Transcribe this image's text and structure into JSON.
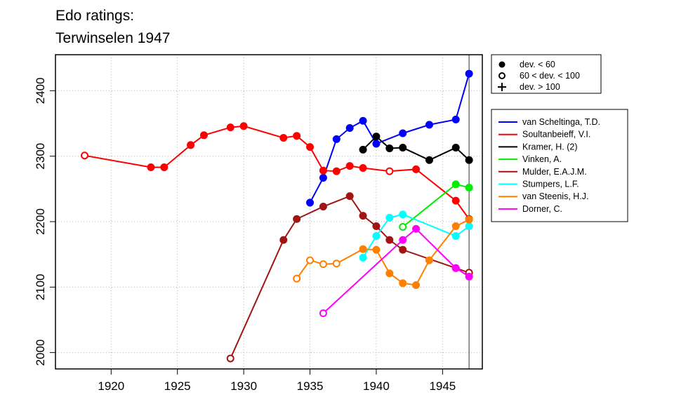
{
  "chart_data": {
    "type": "line",
    "title": "Edo ratings:",
    "subtitle": "Terwinselen 1947",
    "xlabel": "",
    "ylabel": "",
    "xlim": [
      1915.8,
      1948.0
    ],
    "ylim": [
      1975,
      2455
    ],
    "x_ticks": [
      1920,
      1925,
      1930,
      1935,
      1940,
      1945
    ],
    "y_ticks": [
      2000,
      2100,
      2200,
      2300,
      2400
    ],
    "grid": true,
    "vline_x": 1947,
    "deviation_legend": [
      {
        "symbol": "filled",
        "label": "dev. < 60"
      },
      {
        "symbol": "open",
        "label": "60 < dev. < 100"
      },
      {
        "symbol": "plus",
        "label": "dev. > 100"
      }
    ],
    "series": [
      {
        "name": "van Scheltinga, T.D.",
        "color": "#0000ff",
        "points": [
          {
            "x": 1935,
            "y": 2229,
            "m": "f"
          },
          {
            "x": 1936,
            "y": 2267,
            "m": "f"
          },
          {
            "x": 1937,
            "y": 2326,
            "m": "f"
          },
          {
            "x": 1938,
            "y": 2343,
            "m": "f"
          },
          {
            "x": 1939,
            "y": 2354,
            "m": "f"
          },
          {
            "x": 1940,
            "y": 2319,
            "m": "f"
          },
          {
            "x": 1942,
            "y": 2335,
            "m": "f"
          },
          {
            "x": 1944,
            "y": 2348,
            "m": "f"
          },
          {
            "x": 1946,
            "y": 2356,
            "m": "f"
          },
          {
            "x": 1947,
            "y": 2426,
            "m": "f"
          }
        ]
      },
      {
        "name": "Soultanbeieff, V.I.",
        "color": "#ff0000",
        "points": [
          {
            "x": 1918,
            "y": 2301,
            "m": "o"
          },
          {
            "x": 1923,
            "y": 2283,
            "m": "f"
          },
          {
            "x": 1924,
            "y": 2283,
            "m": "f"
          },
          {
            "x": 1926,
            "y": 2317,
            "m": "f"
          },
          {
            "x": 1927,
            "y": 2332,
            "m": "f"
          },
          {
            "x": 1929,
            "y": 2344,
            "m": "f"
          },
          {
            "x": 1930,
            "y": 2346,
            "m": "f"
          },
          {
            "x": 1933,
            "y": 2328,
            "m": "f"
          },
          {
            "x": 1934,
            "y": 2331,
            "m": "f"
          },
          {
            "x": 1935,
            "y": 2314,
            "m": "f"
          },
          {
            "x": 1936,
            "y": 2278,
            "m": "f"
          },
          {
            "x": 1937,
            "y": 2277,
            "m": "f"
          },
          {
            "x": 1938,
            "y": 2285,
            "m": "f"
          },
          {
            "x": 1939,
            "y": 2282,
            "m": "f"
          },
          {
            "x": 1941,
            "y": 2277,
            "m": "o"
          },
          {
            "x": 1943,
            "y": 2280,
            "m": "f"
          },
          {
            "x": 1946,
            "y": 2232,
            "m": "f"
          },
          {
            "x": 1947,
            "y": 2204,
            "m": "f"
          }
        ]
      },
      {
        "name": "Kramer, H. (2)",
        "color": "#000000",
        "points": [
          {
            "x": 1939,
            "y": 2310,
            "m": "f"
          },
          {
            "x": 1940,
            "y": 2330,
            "m": "f"
          },
          {
            "x": 1941,
            "y": 2312,
            "m": "f"
          },
          {
            "x": 1942,
            "y": 2313,
            "m": "f"
          },
          {
            "x": 1944,
            "y": 2294,
            "m": "f"
          },
          {
            "x": 1946,
            "y": 2313,
            "m": "f"
          },
          {
            "x": 1947,
            "y": 2294,
            "m": "f"
          }
        ]
      },
      {
        "name": "Vinken, A.",
        "color": "#00ee00",
        "points": [
          {
            "x": 1942,
            "y": 2192,
            "m": "o"
          },
          {
            "x": 1946,
            "y": 2257,
            "m": "f"
          },
          {
            "x": 1947,
            "y": 2252,
            "m": "f"
          }
        ]
      },
      {
        "name": "Mulder, E.A.J.M.",
        "color": "#a01414",
        "points": [
          {
            "x": 1929,
            "y": 1991,
            "m": "o"
          },
          {
            "x": 1933,
            "y": 2172,
            "m": "f"
          },
          {
            "x": 1934,
            "y": 2204,
            "m": "f"
          },
          {
            "x": 1936,
            "y": 2223,
            "m": "f"
          },
          {
            "x": 1938,
            "y": 2239,
            "m": "f"
          },
          {
            "x": 1939,
            "y": 2209,
            "m": "f"
          },
          {
            "x": 1940,
            "y": 2193,
            "m": "f"
          },
          {
            "x": 1941,
            "y": 2172,
            "m": "f"
          },
          {
            "x": 1942,
            "y": 2157,
            "m": "f"
          },
          {
            "x": 1946,
            "y": 2129,
            "m": "f"
          },
          {
            "x": 1947,
            "y": 2122,
            "m": "o"
          }
        ]
      },
      {
        "name": "Stumpers, L.F.",
        "color": "#00ffff",
        "points": [
          {
            "x": 1939,
            "y": 2145,
            "m": "f"
          },
          {
            "x": 1940,
            "y": 2178,
            "m": "f"
          },
          {
            "x": 1941,
            "y": 2206,
            "m": "f"
          },
          {
            "x": 1942,
            "y": 2211,
            "m": "f"
          },
          {
            "x": 1946,
            "y": 2178,
            "m": "f"
          },
          {
            "x": 1947,
            "y": 2193,
            "m": "f"
          }
        ]
      },
      {
        "name": "van Steenis, H.J.",
        "color": "#ff7f00",
        "points": [
          {
            "x": 1934,
            "y": 2113,
            "m": "o"
          },
          {
            "x": 1935,
            "y": 2141,
            "m": "o"
          },
          {
            "x": 1936,
            "y": 2135,
            "m": "o"
          },
          {
            "x": 1937,
            "y": 2136,
            "m": "o"
          },
          {
            "x": 1939,
            "y": 2158,
            "m": "f"
          },
          {
            "x": 1940,
            "y": 2157,
            "m": "f"
          },
          {
            "x": 1941,
            "y": 2121,
            "m": "f"
          },
          {
            "x": 1942,
            "y": 2106,
            "m": "f"
          },
          {
            "x": 1943,
            "y": 2103,
            "m": "f"
          },
          {
            "x": 1944,
            "y": 2141,
            "m": "f"
          },
          {
            "x": 1946,
            "y": 2193,
            "m": "f"
          },
          {
            "x": 1947,
            "y": 2203,
            "m": "f"
          }
        ]
      },
      {
        "name": "Dorner, C.",
        "color": "#ff00ff",
        "points": [
          {
            "x": 1936,
            "y": 2060,
            "m": "o"
          },
          {
            "x": 1942,
            "y": 2172,
            "m": "f"
          },
          {
            "x": 1943,
            "y": 2189,
            "m": "f"
          },
          {
            "x": 1946,
            "y": 2129,
            "m": "f"
          },
          {
            "x": 1947,
            "y": 2116,
            "m": "f"
          }
        ]
      }
    ]
  }
}
